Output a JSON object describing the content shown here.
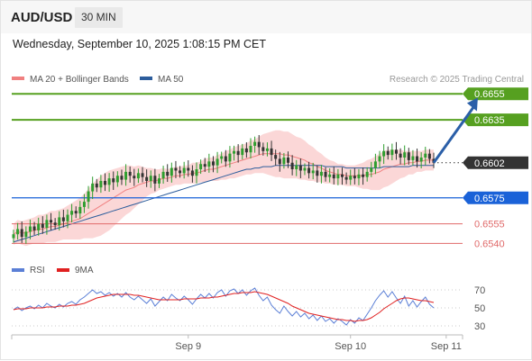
{
  "header": {
    "symbol": "AUD/USD",
    "timeframe": "30 MIN",
    "datetime": "Wednesday, September 10, 2025 1:08:15 PM CET"
  },
  "legend": {
    "items": [
      {
        "label": "MA 20 + Bollinger Bands",
        "color": "#f08080"
      },
      {
        "label": "MA 50",
        "color": "#2c5d9c"
      }
    ],
    "credit": "Research © 2025 Trading Central"
  },
  "rsi_legend": {
    "items": [
      {
        "label": "RSI",
        "color": "#5b7fd6"
      },
      {
        "label": "9MA",
        "color": "#e02020"
      }
    ]
  },
  "colors": {
    "bull_candle": "#2f9e2f",
    "bear_candle": "#333333",
    "bollinger_fill": "#f9c9c9",
    "ma20": "#f08080",
    "ma50": "#2c5d9c",
    "resistance": "#56a020",
    "pivot": "#1a62d8",
    "support": "#e06a6a",
    "current": "#333333",
    "arrow": "#2b5fa8",
    "rsi": "#5b7fd6",
    "rsi_ma": "#e02020"
  },
  "chart_data": [
    {
      "type": "candlestick",
      "title": "AUD/USD 30 MIN",
      "ylim": [
        0.6534,
        0.666
      ],
      "x_ticks": [
        {
          "label": "Sep 9",
          "index": 42
        },
        {
          "label": "Sep 10",
          "index": 81
        },
        {
          "label": "Sep 11",
          "index": 104
        }
      ],
      "levels": [
        {
          "value": 0.6655,
          "label": "0.6655",
          "kind": "resistance"
        },
        {
          "value": 0.6635,
          "label": "0.6635",
          "kind": "resistance"
        },
        {
          "value": 0.6602,
          "label": "0.6602",
          "kind": "current"
        },
        {
          "value": 0.6575,
          "label": "0.6575",
          "kind": "pivot"
        },
        {
          "value": 0.6555,
          "label": "0.6555",
          "kind": "support"
        },
        {
          "value": 0.654,
          "label": "0.6540",
          "kind": "support"
        }
      ],
      "arrow": {
        "from_index": 101,
        "from_value": 0.6602,
        "to_index": 109,
        "to_value": 0.6652
      },
      "closes": [
        0.6547,
        0.6551,
        0.6545,
        0.6549,
        0.6553,
        0.655,
        0.6555,
        0.6552,
        0.6558,
        0.6556,
        0.6554,
        0.656,
        0.6557,
        0.6562,
        0.6565,
        0.6563,
        0.6568,
        0.6572,
        0.658,
        0.6586,
        0.6583,
        0.6588,
        0.6585,
        0.659,
        0.6587,
        0.6592,
        0.6589,
        0.6595,
        0.6592,
        0.659,
        0.6594,
        0.6591,
        0.6588,
        0.6592,
        0.6586,
        0.659,
        0.6595,
        0.6592,
        0.6598,
        0.6596,
        0.6594,
        0.6598,
        0.6596,
        0.6592,
        0.6597,
        0.6601,
        0.6599,
        0.6603,
        0.66,
        0.6605,
        0.6607,
        0.6603,
        0.6609,
        0.6611,
        0.6608,
        0.6613,
        0.661,
        0.6615,
        0.6618,
        0.6614,
        0.6611,
        0.6613,
        0.6608,
        0.6605,
        0.6601,
        0.6606,
        0.6602,
        0.6597,
        0.66,
        0.6596,
        0.6598,
        0.6594,
        0.6596,
        0.6592,
        0.6595,
        0.6591,
        0.6593,
        0.659,
        0.6593,
        0.6591,
        0.6589,
        0.6592,
        0.659,
        0.6593,
        0.6591,
        0.6595,
        0.6598,
        0.6603,
        0.6607,
        0.6611,
        0.6608,
        0.6612,
        0.6609,
        0.6606,
        0.661,
        0.6604,
        0.6607,
        0.6603,
        0.6606,
        0.6609,
        0.6605,
        0.6602
      ],
      "ma20": [
        0.6547,
        0.6549,
        0.6548,
        0.6548,
        0.6549,
        0.655,
        0.6551,
        0.6551,
        0.6552,
        0.6553,
        0.6553,
        0.6554,
        0.6555,
        0.6556,
        0.6557,
        0.6558,
        0.6559,
        0.6561,
        0.6563,
        0.6565,
        0.6567,
        0.6569,
        0.6571,
        0.6573,
        0.6575,
        0.6577,
        0.6579,
        0.6581,
        0.6582,
        0.6583,
        0.6585,
        0.6586,
        0.6587,
        0.6588,
        0.6588,
        0.6589,
        0.659,
        0.659,
        0.6591,
        0.6592,
        0.6592,
        0.6593,
        0.6593,
        0.6594,
        0.6594,
        0.6595,
        0.6596,
        0.6597,
        0.6597,
        0.6598,
        0.6599,
        0.66,
        0.6601,
        0.6602,
        0.6603,
        0.6604,
        0.6605,
        0.6606,
        0.6607,
        0.6608,
        0.6609,
        0.6609,
        0.6609,
        0.6609,
        0.6609,
        0.6608,
        0.6608,
        0.6607,
        0.6606,
        0.6605,
        0.6604,
        0.6602,
        0.6601,
        0.6599,
        0.6598,
        0.6596,
        0.6595,
        0.6594,
        0.6593,
        0.6593,
        0.6592,
        0.6592,
        0.6592,
        0.6592,
        0.6592,
        0.6593,
        0.6593,
        0.6594,
        0.6595,
        0.6597,
        0.6598,
        0.6599,
        0.66,
        0.6601,
        0.6601,
        0.6602,
        0.6602,
        0.6603,
        0.6603,
        0.6604,
        0.6604,
        0.6604
      ],
      "ma50": [
        0.6541,
        0.6542,
        0.6543,
        0.6544,
        0.6545,
        0.6546,
        0.6547,
        0.6548,
        0.6549,
        0.655,
        0.6551,
        0.6552,
        0.6553,
        0.6554,
        0.6555,
        0.6556,
        0.6557,
        0.6558,
        0.6559,
        0.656,
        0.6561,
        0.6562,
        0.6563,
        0.6564,
        0.6565,
        0.6566,
        0.6567,
        0.6568,
        0.6569,
        0.657,
        0.6571,
        0.6572,
        0.6573,
        0.6574,
        0.6575,
        0.6576,
        0.6577,
        0.6578,
        0.6579,
        0.658,
        0.6581,
        0.6582,
        0.6583,
        0.6584,
        0.6585,
        0.6586,
        0.6587,
        0.6588,
        0.6589,
        0.659,
        0.6591,
        0.6592,
        0.6593,
        0.6594,
        0.6595,
        0.6596,
        0.6597,
        0.6597,
        0.6598,
        0.6598,
        0.6599,
        0.6599,
        0.6599,
        0.66,
        0.66,
        0.66,
        0.66,
        0.66,
        0.66,
        0.66,
        0.66,
        0.66,
        0.66,
        0.66,
        0.66,
        0.6599,
        0.6599,
        0.6599,
        0.6599,
        0.6599,
        0.6598,
        0.6598,
        0.6598,
        0.6598,
        0.6598,
        0.6598,
        0.6598,
        0.6598,
        0.6598,
        0.6599,
        0.6599,
        0.6599,
        0.6599,
        0.6599,
        0.6599,
        0.6599,
        0.66,
        0.66,
        0.66,
        0.66,
        0.66,
        0.66
      ],
      "band_width": [
        0.0008,
        0.0009,
        0.0009,
        0.001,
        0.001,
        0.001,
        0.0011,
        0.0011,
        0.0011,
        0.0012,
        0.0012,
        0.0012,
        0.0012,
        0.0013,
        0.0014,
        0.0015,
        0.0016,
        0.0017,
        0.0019,
        0.0021,
        0.0022,
        0.0023,
        0.0023,
        0.0023,
        0.0022,
        0.0021,
        0.002,
        0.0019,
        0.0018,
        0.0016,
        0.0015,
        0.0013,
        0.0011,
        0.001,
        0.0009,
        0.0008,
        0.0008,
        0.0007,
        0.0007,
        0.0007,
        0.0007,
        0.0007,
        0.0007,
        0.0008,
        0.0008,
        0.0008,
        0.0009,
        0.0009,
        0.0009,
        0.001,
        0.001,
        0.0011,
        0.0011,
        0.0012,
        0.0012,
        0.0012,
        0.0012,
        0.0013,
        0.0013,
        0.0014,
        0.0015,
        0.0016,
        0.0017,
        0.0018,
        0.0018,
        0.0018,
        0.0018,
        0.0017,
        0.0016,
        0.0016,
        0.0015,
        0.0014,
        0.0013,
        0.0012,
        0.0011,
        0.001,
        0.0009,
        0.0009,
        0.0008,
        0.0008,
        0.0008,
        0.0008,
        0.0008,
        0.0009,
        0.001,
        0.0011,
        0.0012,
        0.0013,
        0.0014,
        0.0014,
        0.0014,
        0.0013,
        0.0012,
        0.0011,
        0.001,
        0.0009,
        0.0009,
        0.0008,
        0.0008,
        0.0008,
        0.0008,
        0.0008
      ]
    },
    {
      "type": "line",
      "title": "RSI",
      "ylim": [
        25,
        78
      ],
      "y_ticks": [
        70,
        50,
        30
      ],
      "series": [
        {
          "name": "RSI",
          "values": [
            48,
            51,
            47,
            50,
            52,
            49,
            53,
            50,
            55,
            52,
            50,
            54,
            51,
            55,
            57,
            54,
            59,
            62,
            66,
            70,
            66,
            68,
            64,
            67,
            63,
            66,
            62,
            67,
            62,
            59,
            63,
            59,
            55,
            60,
            52,
            57,
            62,
            58,
            65,
            61,
            58,
            63,
            59,
            54,
            60,
            65,
            61,
            66,
            61,
            67,
            70,
            63,
            69,
            71,
            66,
            70,
            64,
            69,
            72,
            64,
            58,
            62,
            53,
            48,
            44,
            52,
            46,
            41,
            46,
            40,
            44,
            38,
            42,
            36,
            41,
            35,
            38,
            33,
            38,
            35,
            31,
            37,
            33,
            39,
            36,
            43,
            50,
            58,
            64,
            69,
            62,
            68,
            61,
            55,
            63,
            52,
            58,
            51,
            57,
            62,
            54,
            50
          ]
        },
        {
          "name": "9MA",
          "values": [
            48,
            49,
            49,
            49,
            50,
            50,
            50,
            50,
            51,
            51,
            51,
            52,
            52,
            52,
            53,
            53,
            54,
            55,
            57,
            59,
            61,
            62,
            63,
            64,
            65,
            65,
            65,
            65,
            65,
            64,
            64,
            63,
            62,
            61,
            60,
            59,
            59,
            59,
            59,
            59,
            59,
            60,
            60,
            60,
            60,
            61,
            61,
            61,
            62,
            62,
            63,
            64,
            65,
            66,
            66,
            67,
            67,
            67,
            68,
            67,
            66,
            65,
            63,
            61,
            59,
            57,
            55,
            52,
            50,
            48,
            46,
            44,
            43,
            42,
            41,
            40,
            39,
            38,
            37,
            37,
            36,
            36,
            35,
            36,
            36,
            37,
            39,
            42,
            45,
            49,
            52,
            55,
            58,
            60,
            61,
            61,
            60,
            59,
            58,
            58,
            57,
            56
          ]
        }
      ]
    }
  ]
}
